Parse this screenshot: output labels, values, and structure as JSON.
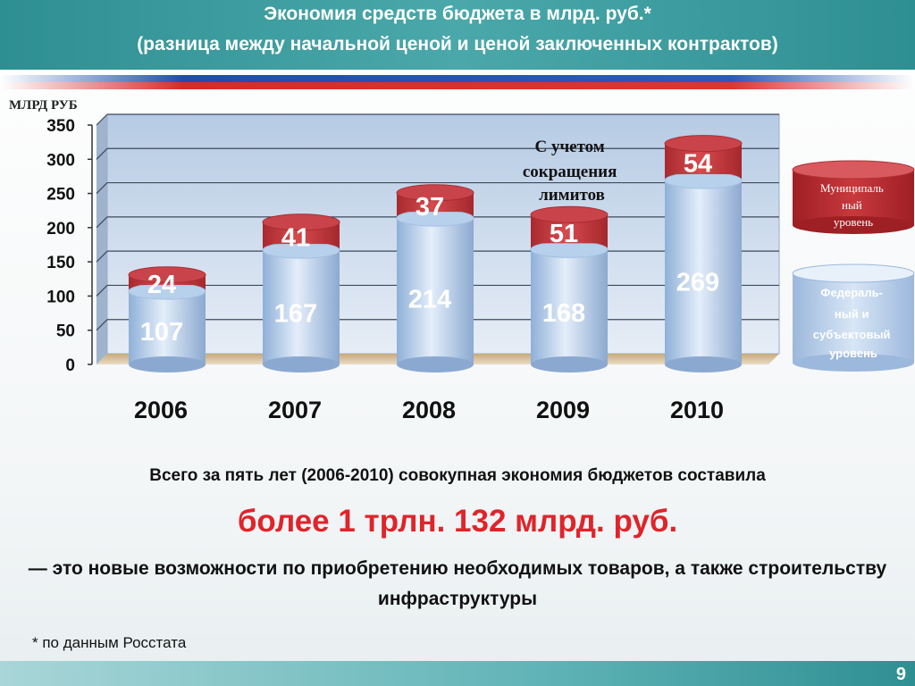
{
  "header": {
    "title_line1": "Экономия средств бюджета в млрд. руб.*",
    "title_line2": "(разница между начальной ценой и ценой заключенных контрактов)"
  },
  "colors": {
    "federal": "#bcd2ea",
    "municipal": "#c0393d",
    "accent_red": "#e0242a",
    "header_teal": "#3d9fa1"
  },
  "chart_data": {
    "type": "bar",
    "stacked": true,
    "unit_label": "МЛРД РУБ",
    "categories": [
      "2006",
      "2007",
      "2008",
      "2009",
      "2010"
    ],
    "series": [
      {
        "name": "Федераль-ный и субъектовый уровень",
        "values": [
          107,
          167,
          214,
          168,
          269
        ]
      },
      {
        "name": "Муниципальный уровень",
        "values": [
          24,
          41,
          37,
          51,
          54
        ]
      }
    ],
    "yticks": [
      0,
      50,
      100,
      150,
      200,
      250,
      300,
      350
    ],
    "ylim": [
      0,
      350
    ],
    "grid": true,
    "legend_position": "right",
    "annotation": "С учетом сокращения лимитов",
    "annotation_lines": [
      "С учетом",
      "сокращения",
      "лимитов"
    ]
  },
  "legend": {
    "municipal_lines": [
      "Муниципаль",
      "ный",
      "уровень"
    ],
    "federal_lines": [
      "Федераль-",
      "ный и",
      "субъектовый",
      "уровень"
    ]
  },
  "summary": {
    "line1": "Всего за пять лет  (2006-2010) совокупная экономия бюджетов составила",
    "line2": "более 1 трлн. 132 млрд. руб.",
    "line3": "— это новые возможности по приобретению необходимых товаров, а также строительству инфраструктуры"
  },
  "footnote": "* по данным Росстата",
  "page_number": "9"
}
